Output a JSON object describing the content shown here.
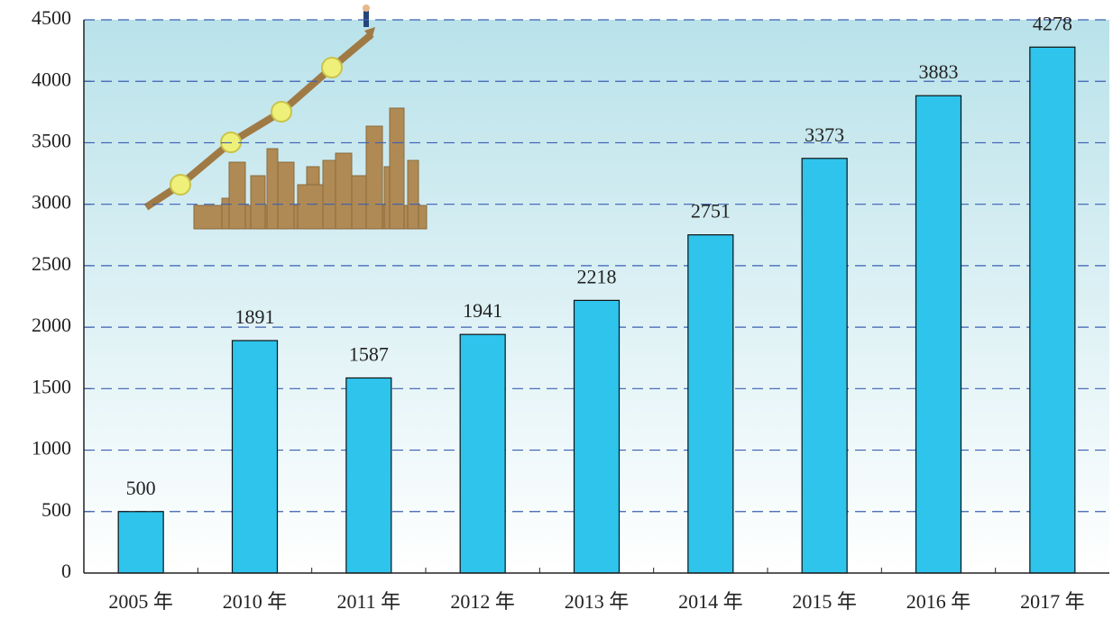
{
  "chart_data": {
    "type": "bar",
    "categories": [
      "2005 年",
      "2010 年",
      "2011 年",
      "2012 年",
      "2013 年",
      "2014 年",
      "2015 年",
      "2016 年",
      "2017 年"
    ],
    "values": [
      500,
      1891,
      1587,
      1941,
      2218,
      2751,
      3373,
      3883,
      4278
    ],
    "color": "#2ec4ec",
    "ylim": [
      0,
      4500
    ],
    "yticks": [
      0,
      500,
      1000,
      1500,
      2000,
      2500,
      3000,
      3500,
      4000,
      4500
    ],
    "grid": true
  }
}
